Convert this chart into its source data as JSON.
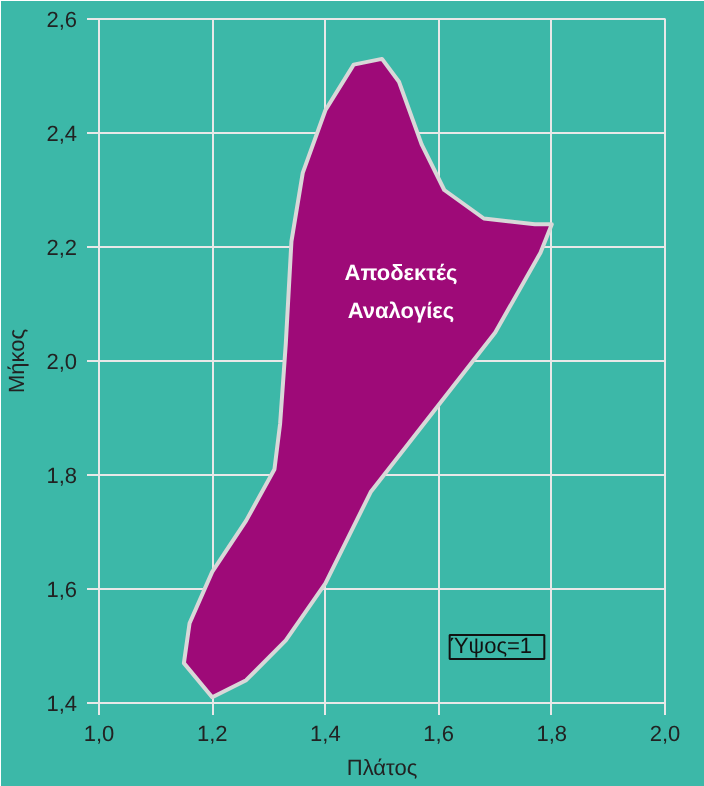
{
  "chart_data": {
    "type": "area",
    "xlabel": "Πλάτος",
    "ylabel": "Μήκος",
    "xlim": [
      1.0,
      2.0
    ],
    "ylim": [
      1.4,
      2.6
    ],
    "xticks": [
      {
        "value": 1.0,
        "label": "1,0"
      },
      {
        "value": 1.2,
        "label": "1,2"
      },
      {
        "value": 1.4,
        "label": "1,4"
      },
      {
        "value": 1.6,
        "label": "1,6"
      },
      {
        "value": 1.8,
        "label": "1,8"
      },
      {
        "value": 2.0,
        "label": "2,0"
      }
    ],
    "yticks": [
      {
        "value": 1.4,
        "label": "1,4"
      },
      {
        "value": 1.6,
        "label": "1,6"
      },
      {
        "value": 1.8,
        "label": "1,8"
      },
      {
        "value": 2.0,
        "label": "2,0"
      },
      {
        "value": 2.2,
        "label": "2,2"
      },
      {
        "value": 2.4,
        "label": "2,4"
      },
      {
        "value": 2.6,
        "label": "2,6"
      }
    ],
    "grid": true,
    "series": [
      {
        "color": "#9e0a78",
        "x": [
          1.2,
          1.15,
          1.16,
          1.2,
          1.26,
          1.31,
          1.32,
          1.33,
          1.34,
          1.36,
          1.4,
          1.45,
          1.5,
          1.53,
          1.57,
          1.61,
          1.68,
          1.77,
          1.8,
          1.78,
          1.7,
          1.59,
          1.48,
          1.4,
          1.33,
          1.26
        ],
        "values": [
          1.41,
          1.47,
          1.54,
          1.63,
          1.72,
          1.81,
          1.89,
          2.03,
          2.21,
          2.33,
          2.44,
          2.52,
          2.53,
          2.49,
          2.38,
          2.3,
          2.25,
          2.24,
          2.24,
          2.19,
          2.05,
          1.91,
          1.77,
          1.61,
          1.51,
          1.44
        ]
      }
    ],
    "annotations": [
      "Αποδεκτές\nΑναλογίες",
      "Ύψος=1"
    ]
  }
}
